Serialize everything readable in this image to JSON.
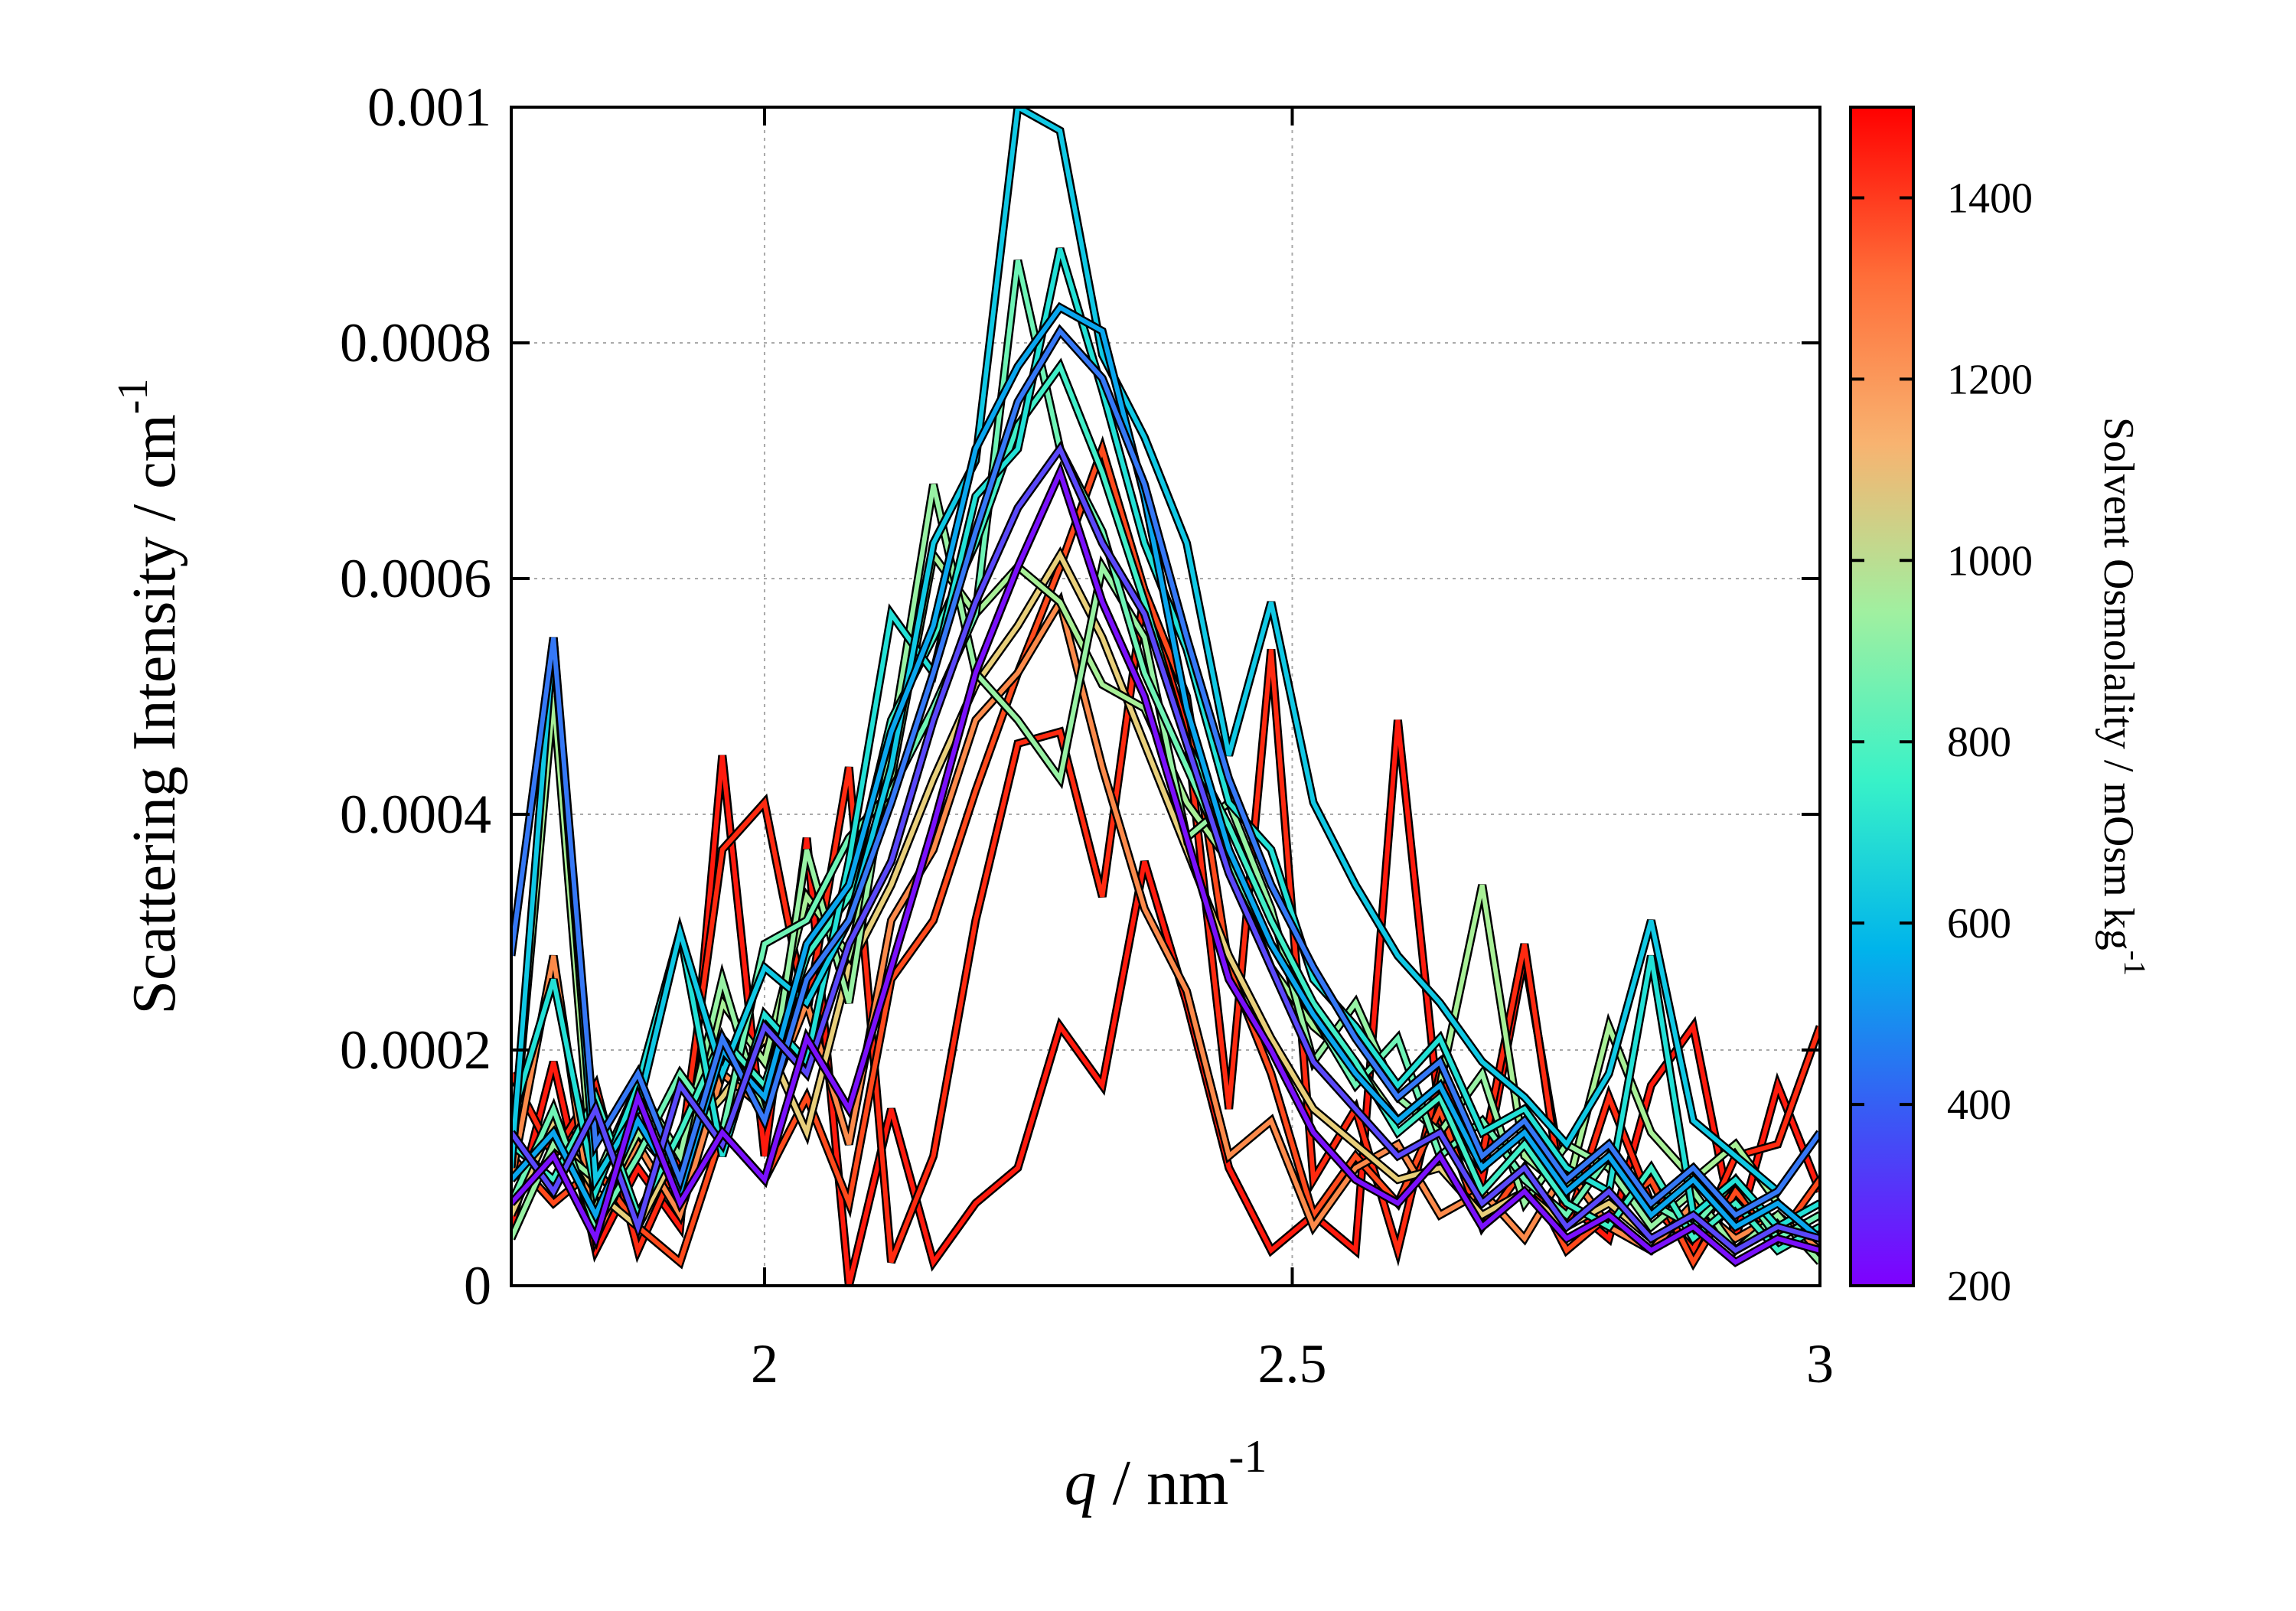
{
  "chart_data": {
    "type": "line",
    "title": "",
    "xlabel": {
      "var": "q",
      "rest": " / nm",
      "sup": "-1"
    },
    "ylabel": {
      "text": "Scattering Intensity / cm",
      "sup": "-1"
    },
    "xlim": [
      1.76,
      3.0
    ],
    "ylim": [
      0,
      0.001
    ],
    "xticks": [
      2,
      2.5,
      3
    ],
    "xtick_labels": [
      "2",
      "2.5",
      "3"
    ],
    "yticks": [
      0,
      0.0002,
      0.0004,
      0.0006,
      0.0008,
      0.001
    ],
    "ytick_labels": [
      "0",
      "0.0002",
      "0.0004",
      "0.0006",
      "0.0008",
      "0.001"
    ],
    "grid": true,
    "colorbar": {
      "label": {
        "text": "Solvent Osmolality / mOsm kg",
        "sup": "-1"
      },
      "range": [
        200,
        1500
      ],
      "ticks": [
        200,
        400,
        600,
        800,
        1000,
        1200,
        1400
      ],
      "tick_labels": [
        "200",
        "400",
        "600",
        "800",
        "1000",
        "1200",
        "1400"
      ],
      "colormap": [
        "#7f00ff",
        "#3a58f5",
        "#00b4eb",
        "#38f2c8",
        "#a0f0a0",
        "#f8b370",
        "#ff6d38",
        "#ff0000"
      ]
    },
    "series_style": {
      "outline": "#000000"
    },
    "series": [
      {
        "osmolality": 1480,
        "color": "#ff1a0d",
        "x": [
          1.76,
          1.8,
          1.84,
          1.88,
          1.92,
          1.96,
          2.0,
          2.04,
          2.08,
          2.12,
          2.16,
          2.2,
          2.24,
          2.28,
          2.32,
          2.36,
          2.4,
          2.44,
          2.48,
          2.52,
          2.56,
          2.6,
          2.64,
          2.68,
          2.72,
          2.76,
          2.8,
          2.84,
          2.88,
          2.92,
          2.96,
          3.0
        ],
        "y": [
          5e-05,
          0.00019,
          3e-05,
          0.0001,
          5e-05,
          0.00045,
          0.00011,
          0.00038,
          0.0,
          0.00015,
          2e-05,
          7e-05,
          0.0001,
          0.00022,
          0.00017,
          0.00036,
          0.00024,
          0.0001,
          3e-05,
          6e-05,
          3e-05,
          0.00048,
          0.00014,
          9e-05,
          0.00028,
          7e-05,
          4e-05,
          0.00017,
          0.00022,
          4e-05,
          0.00017,
          8e-05
        ]
      },
      {
        "osmolality": 1420,
        "color": "#ff2a10",
        "x": [
          1.76,
          1.8,
          1.84,
          1.88,
          1.92,
          1.96,
          2.0,
          2.04,
          2.08,
          2.12,
          2.16,
          2.2,
          2.24,
          2.28,
          2.32,
          2.36,
          2.4,
          2.44,
          2.48,
          2.52,
          2.56,
          2.6,
          2.64,
          2.68,
          2.72,
          2.76,
          2.8,
          2.84,
          2.88,
          2.92,
          2.96,
          3.0
        ],
        "y": [
          0.00018,
          0.00011,
          0.00017,
          3e-05,
          0.00011,
          0.00037,
          0.00041,
          0.00023,
          0.00044,
          2e-05,
          0.00011,
          0.00031,
          0.00046,
          0.00047,
          0.00033,
          0.00059,
          0.00047,
          0.00015,
          0.00054,
          9e-05,
          0.00015,
          3e-05,
          0.00018,
          0.00011,
          0.00029,
          5e-05,
          0.00016,
          7e-05,
          3e-05,
          0.00011,
          0.00012,
          0.00022
        ]
      },
      {
        "osmolality": 1350,
        "color": "#ff4a1c",
        "x": [
          1.76,
          1.8,
          1.84,
          1.88,
          1.92,
          1.96,
          2.0,
          2.04,
          2.08,
          2.12,
          2.16,
          2.2,
          2.24,
          2.28,
          2.32,
          2.36,
          2.4,
          2.44,
          2.48,
          2.52,
          2.56,
          2.6,
          2.64,
          2.68,
          2.72,
          2.76,
          2.8,
          2.84,
          2.88,
          2.92,
          2.96,
          3.0
        ],
        "y": [
          0.00011,
          7e-05,
          0.0001,
          5e-05,
          2e-05,
          0.00013,
          9e-05,
          0.00016,
          7e-05,
          0.00026,
          0.00031,
          0.00042,
          0.00052,
          0.00061,
          0.00071,
          0.00059,
          0.0005,
          0.00027,
          0.00018,
          6e-05,
          0.00011,
          7e-05,
          0.00015,
          5e-05,
          0.0001,
          3e-05,
          6e-05,
          9e-05,
          2e-05,
          8e-05,
          4e-05,
          9e-05
        ]
      },
      {
        "osmolality": 1250,
        "color": "#fc8a4a",
        "x": [
          1.76,
          1.8,
          1.84,
          1.88,
          1.92,
          1.96,
          2.0,
          2.04,
          2.08,
          2.12,
          2.16,
          2.2,
          2.24,
          2.28,
          2.32,
          2.36,
          2.4,
          2.44,
          2.48,
          2.52,
          2.56,
          2.6,
          2.64,
          2.68,
          2.72,
          2.76,
          2.8,
          2.84,
          2.88,
          2.92,
          2.96,
          3.0
        ],
        "y": [
          9e-05,
          0.00028,
          4e-05,
          0.00012,
          6e-05,
          0.00018,
          0.00015,
          0.00024,
          0.00012,
          0.00031,
          0.00037,
          0.00048,
          0.00052,
          0.00058,
          0.00044,
          0.00032,
          0.00025,
          0.00011,
          0.00014,
          5e-05,
          0.0001,
          0.00012,
          6e-05,
          8e-05,
          4e-05,
          0.0001,
          5e-05,
          3e-05,
          7e-05,
          4e-05,
          6e-05,
          3e-05
        ]
      },
      {
        "osmolality": 1120,
        "color": "#e8cf7a",
        "x": [
          1.76,
          1.8,
          1.84,
          1.88,
          1.92,
          1.96,
          2.0,
          2.04,
          2.08,
          2.12,
          2.16,
          2.2,
          2.24,
          2.28,
          2.32,
          2.36,
          2.4,
          2.44,
          2.48,
          2.52,
          2.56,
          2.6,
          2.64,
          2.68,
          2.72,
          2.76,
          2.8,
          2.84,
          2.88,
          2.92,
          2.96,
          3.0
        ],
        "y": [
          6e-05,
          0.00014,
          8e-05,
          5e-05,
          0.00012,
          0.00016,
          0.00021,
          0.00013,
          0.00027,
          0.00034,
          0.00043,
          0.00051,
          0.00056,
          0.00062,
          0.00055,
          0.00046,
          0.00037,
          0.00028,
          0.00021,
          0.00015,
          0.00012,
          9e-05,
          0.0001,
          6e-05,
          8e-05,
          5e-05,
          7e-05,
          4e-05,
          6e-05,
          3e-05,
          5e-05,
          4e-05
        ]
      },
      {
        "osmolality": 1000,
        "color": "#a8f097",
        "x": [
          1.76,
          1.8,
          1.84,
          1.88,
          1.92,
          1.96,
          2.0,
          2.04,
          2.08,
          2.12,
          2.16,
          2.2,
          2.24,
          2.28,
          2.32,
          2.36,
          2.4,
          2.44,
          2.48,
          2.52,
          2.56,
          2.6,
          2.64,
          2.68,
          2.72,
          2.76,
          2.8,
          2.84,
          2.88,
          2.92,
          2.96,
          3.0
        ],
        "y": [
          0.0001,
          0.0005,
          6e-05,
          0.00013,
          9e-05,
          0.00024,
          0.00019,
          0.00033,
          0.00028,
          0.00043,
          0.00062,
          0.00057,
          0.00061,
          0.00058,
          0.00051,
          0.00049,
          0.00041,
          0.00036,
          0.00027,
          0.00022,
          0.00019,
          0.00014,
          0.00017,
          0.00034,
          0.00011,
          8e-05,
          0.00022,
          0.00013,
          9e-05,
          0.00012,
          7e-05,
          4e-05
        ]
      },
      {
        "osmolality": 950,
        "color": "#98f2a4",
        "x": [
          1.76,
          1.8,
          1.84,
          1.88,
          1.92,
          1.96,
          2.0,
          2.04,
          2.08,
          2.12,
          2.16,
          2.2,
          2.24,
          2.28,
          2.32,
          2.36,
          2.4,
          2.44,
          2.48,
          2.52,
          2.56,
          2.6,
          2.64,
          2.68,
          2.72,
          2.76,
          2.8,
          2.84,
          2.88,
          2.92,
          2.96,
          3.0
        ],
        "y": [
          4e-05,
          0.00012,
          9e-05,
          0.00017,
          0.00011,
          0.00026,
          0.00014,
          0.00037,
          0.00024,
          0.00046,
          0.00068,
          0.00052,
          0.00048,
          0.00043,
          0.00061,
          0.00055,
          0.00038,
          0.00041,
          0.00032,
          0.00019,
          0.00024,
          0.00016,
          0.00013,
          0.00018,
          7e-05,
          0.00012,
          0.0001,
          5e-05,
          8e-05,
          3e-05,
          6e-05,
          2e-05
        ]
      },
      {
        "osmolality": 880,
        "color": "#6ef4b6",
        "x": [
          1.76,
          1.8,
          1.84,
          1.88,
          1.92,
          1.96,
          2.0,
          2.04,
          2.08,
          2.12,
          2.16,
          2.2,
          2.24,
          2.28,
          2.32,
          2.36,
          2.4,
          2.44,
          2.48,
          2.52,
          2.56,
          2.6,
          2.64,
          2.68,
          2.72,
          2.76,
          2.8,
          2.84,
          2.88,
          2.92,
          2.96,
          3.0
        ],
        "y": [
          7e-05,
          0.00015,
          5e-05,
          0.00011,
          0.00018,
          0.00013,
          0.00029,
          0.00031,
          0.00038,
          0.00042,
          0.00049,
          0.00057,
          0.00087,
          0.00071,
          0.00064,
          0.00052,
          0.00044,
          0.00036,
          0.00029,
          0.00023,
          0.00017,
          0.00021,
          0.00011,
          0.00014,
          9e-05,
          6e-05,
          0.00011,
          7e-05,
          5e-05,
          9e-05,
          4e-05,
          6e-05
        ]
      },
      {
        "osmolality": 800,
        "color": "#40eec8",
        "x": [
          1.76,
          1.8,
          1.84,
          1.88,
          1.92,
          1.96,
          2.0,
          2.04,
          2.08,
          2.12,
          2.16,
          2.2,
          2.24,
          2.28,
          2.32,
          2.36,
          2.4,
          2.44,
          2.48,
          2.52,
          2.56,
          2.6,
          2.64,
          2.68,
          2.72,
          2.76,
          2.8,
          2.84,
          2.88,
          2.92,
          2.96,
          3.0
        ],
        "y": [
          0.00012,
          9e-05,
          0.00016,
          6e-05,
          0.00013,
          0.00021,
          0.00017,
          0.00028,
          0.00033,
          0.00048,
          0.00055,
          0.00063,
          0.00073,
          0.00078,
          0.00069,
          0.00058,
          0.00046,
          0.00039,
          0.00031,
          0.00024,
          0.00019,
          0.00013,
          0.00016,
          8e-05,
          0.00012,
          7e-05,
          5e-05,
          0.0001,
          4e-05,
          7e-05,
          3e-05,
          5e-05
        ]
      },
      {
        "osmolality": 700,
        "color": "#22e0d6",
        "x": [
          1.76,
          1.8,
          1.84,
          1.88,
          1.92,
          1.96,
          2.0,
          2.04,
          2.08,
          2.12,
          2.16,
          2.2,
          2.24,
          2.28,
          2.32,
          2.36,
          2.4,
          2.44,
          2.48,
          2.52,
          2.56,
          2.6,
          2.64,
          2.68,
          2.72,
          2.76,
          2.8,
          2.84,
          2.88,
          2.92,
          2.96,
          3.0
        ],
        "y": [
          0.00014,
          0.00026,
          8e-05,
          0.00017,
          0.0003,
          0.00011,
          0.00023,
          0.00019,
          0.00036,
          0.00057,
          0.00052,
          0.00067,
          0.00071,
          0.00088,
          0.00076,
          0.00063,
          0.00054,
          0.00041,
          0.00037,
          0.00026,
          0.00022,
          0.00017,
          0.00021,
          0.00013,
          0.00015,
          0.0001,
          8e-05,
          0.00028,
          6e-05,
          9e-05,
          5e-05,
          7e-05
        ]
      },
      {
        "osmolality": 620,
        "color": "#10c8e4",
        "x": [
          1.76,
          1.8,
          1.84,
          1.88,
          1.92,
          1.96,
          2.0,
          2.04,
          2.08,
          2.12,
          2.16,
          2.2,
          2.24,
          2.28,
          2.32,
          2.36,
          2.4,
          2.44,
          2.48,
          2.52,
          2.56,
          2.6,
          2.64,
          2.68,
          2.72,
          2.76,
          2.8,
          2.84,
          2.88,
          2.92,
          2.96,
          3.0
        ],
        "y": [
          0.0001,
          0.00055,
          9e-05,
          0.00015,
          0.0003,
          0.00018,
          0.00027,
          0.00024,
          0.00031,
          0.00044,
          0.00063,
          0.0007,
          0.001,
          0.00098,
          0.00079,
          0.00072,
          0.00063,
          0.00045,
          0.00058,
          0.00041,
          0.00034,
          0.00028,
          0.00024,
          0.00019,
          0.00016,
          0.00012,
          0.00018,
          0.00031,
          0.00014,
          0.00011,
          8e-05,
          0.00013
        ]
      },
      {
        "osmolality": 520,
        "color": "#0aa6ee",
        "x": [
          1.76,
          1.8,
          1.84,
          1.88,
          1.92,
          1.96,
          2.0,
          2.04,
          2.08,
          2.12,
          2.16,
          2.2,
          2.24,
          2.28,
          2.32,
          2.36,
          2.4,
          2.44,
          2.48,
          2.52,
          2.56,
          2.6,
          2.64,
          2.68,
          2.72,
          2.76,
          2.8,
          2.84,
          2.88,
          2.92,
          2.96,
          3.0
        ],
        "y": [
          9e-05,
          0.00013,
          6e-05,
          0.00014,
          8e-05,
          0.0002,
          0.00016,
          0.00029,
          0.00034,
          0.00047,
          0.00056,
          0.00071,
          0.00078,
          0.00083,
          0.00081,
          0.00067,
          0.00049,
          0.00037,
          0.00029,
          0.00023,
          0.00018,
          0.00014,
          0.00017,
          0.0001,
          0.00013,
          8e-05,
          0.00011,
          6e-05,
          9e-05,
          5e-05,
          7e-05,
          4e-05
        ]
      },
      {
        "osmolality": 420,
        "color": "#3578f6",
        "x": [
          1.76,
          1.8,
          1.84,
          1.88,
          1.92,
          1.96,
          2.0,
          2.04,
          2.08,
          2.12,
          2.16,
          2.2,
          2.24,
          2.28,
          2.32,
          2.36,
          2.4,
          2.44,
          2.48,
          2.52,
          2.56,
          2.6,
          2.64,
          2.68,
          2.72,
          2.76,
          2.8,
          2.84,
          2.88,
          2.92,
          2.96,
          3.0
        ],
        "y": [
          0.00028,
          0.00055,
          0.00012,
          0.00018,
          9e-05,
          0.00021,
          0.00014,
          0.00026,
          0.00031,
          0.00041,
          0.00052,
          0.00064,
          0.00075,
          0.00081,
          0.00077,
          0.00068,
          0.00055,
          0.00043,
          0.00034,
          0.00027,
          0.00021,
          0.00016,
          0.00019,
          0.00011,
          0.00014,
          9e-05,
          0.00012,
          7e-05,
          0.0001,
          6e-05,
          8e-05,
          0.00013
        ]
      },
      {
        "osmolality": 330,
        "color": "#5a48fa",
        "x": [
          1.76,
          1.8,
          1.84,
          1.88,
          1.92,
          1.96,
          2.0,
          2.04,
          2.08,
          2.12,
          2.16,
          2.2,
          2.24,
          2.28,
          2.32,
          2.36,
          2.4,
          2.44,
          2.48,
          2.52,
          2.56,
          2.6,
          2.64,
          2.68,
          2.72,
          2.76,
          2.8,
          2.84,
          2.88,
          2.92,
          2.96,
          3.0
        ],
        "y": [
          0.00013,
          8e-05,
          0.00015,
          5e-05,
          0.00017,
          0.00012,
          0.00022,
          0.00018,
          0.00029,
          0.00036,
          0.00048,
          0.00058,
          0.00066,
          0.00071,
          0.00063,
          0.00057,
          0.00046,
          0.00035,
          0.00027,
          0.00019,
          0.00015,
          0.00011,
          0.00013,
          7e-05,
          0.0001,
          5e-05,
          8e-05,
          4e-05,
          6e-05,
          3e-05,
          5e-05,
          4e-05
        ]
      },
      {
        "osmolality": 240,
        "color": "#7a10fc",
        "x": [
          1.76,
          1.8,
          1.84,
          1.88,
          1.92,
          1.96,
          2.0,
          2.04,
          2.08,
          2.12,
          2.16,
          2.2,
          2.24,
          2.28,
          2.32,
          2.36,
          2.4,
          2.44,
          2.48,
          2.52,
          2.56,
          2.6,
          2.64,
          2.68,
          2.72,
          2.76,
          2.8,
          2.84,
          2.88,
          2.92,
          2.96,
          3.0
        ],
        "y": [
          7e-05,
          0.00011,
          4e-05,
          0.00016,
          7e-05,
          0.00013,
          9e-05,
          0.00021,
          0.00015,
          0.00027,
          0.00039,
          0.00052,
          0.00061,
          0.00069,
          0.00058,
          0.0005,
          0.00038,
          0.00026,
          0.0002,
          0.00013,
          9e-05,
          7e-05,
          0.00011,
          5e-05,
          8e-05,
          4e-05,
          6e-05,
          3e-05,
          5e-05,
          2e-05,
          4e-05,
          3e-05
        ]
      }
    ]
  }
}
